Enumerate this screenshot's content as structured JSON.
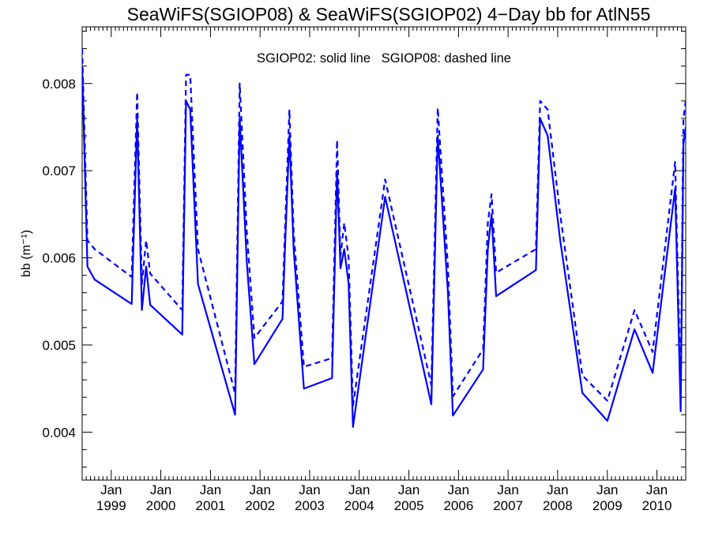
{
  "chart_data": {
    "type": "line",
    "title": "SeaWiFS(SGIOP08) & SeaWiFS(SGIOP02) 4−Day bb for AtlN55",
    "annotation": "SGIOP02: solid line   SGIOP08: dashed line",
    "ylabel": "bb (m⁻¹)",
    "xlabel": "",
    "xlim": [
      "1998-06-01",
      "2010-08-01"
    ],
    "ylim": [
      0.00345,
      0.00865
    ],
    "yticks": [
      0.004,
      0.005,
      0.006,
      0.007,
      0.008
    ],
    "ytick_labels": [
      "0.004",
      "0.005",
      "0.006",
      "0.007",
      "0.008"
    ],
    "xticks": [
      {
        "date": "1999-01-01",
        "month": "Jan",
        "year": "1999"
      },
      {
        "date": "2000-01-01",
        "month": "Jan",
        "year": "2000"
      },
      {
        "date": "2001-01-01",
        "month": "Jan",
        "year": "2001"
      },
      {
        "date": "2002-01-01",
        "month": "Jan",
        "year": "2002"
      },
      {
        "date": "2003-01-01",
        "month": "Jan",
        "year": "2003"
      },
      {
        "date": "2004-01-01",
        "month": "Jan",
        "year": "2004"
      },
      {
        "date": "2005-01-01",
        "month": "Jan",
        "year": "2005"
      },
      {
        "date": "2006-01-01",
        "month": "Jan",
        "year": "2006"
      },
      {
        "date": "2007-01-01",
        "month": "Jan",
        "year": "2007"
      },
      {
        "date": "2008-01-01",
        "month": "Jan",
        "year": "2008"
      },
      {
        "date": "2009-01-01",
        "month": "Jan",
        "year": "2009"
      },
      {
        "date": "2010-01-01",
        "month": "Jan",
        "year": "2010"
      }
    ],
    "grid": false,
    "line_color": "#0000ff",
    "series": [
      {
        "name": "SGIOP02",
        "style": "solid",
        "x": [
          "1998-06-01",
          "1998-07-10",
          "1998-09-01",
          "1999-06-01",
          "1999-07-11",
          "1999-08-15",
          "1999-09-15",
          "1999-10-15",
          "2000-06-07",
          "2000-07-05",
          "2000-08-05",
          "2000-10-01",
          "2001-07-01",
          "2001-08-04",
          "2001-09-25",
          "2001-11-20",
          "2002-06-15",
          "2002-07-01",
          "2002-08-05",
          "2002-09-05",
          "2002-11-20",
          "2003-06-15",
          "2003-07-22",
          "2003-08-16",
          "2003-09-13",
          "2003-10-15",
          "2003-11-16",
          "2004-07-10",
          "2005-06-15",
          "2005-08-01",
          "2005-10-15",
          "2005-11-21",
          "2006-07-01",
          "2006-08-05",
          "2006-09-01",
          "2006-10-05",
          "2007-07-25",
          "2007-08-25",
          "2007-10-20",
          "2008-01-20",
          "2008-07-01",
          "2009-01-01",
          "2009-07-20",
          "2009-11-30",
          "2010-05-15",
          "2010-06-25",
          "2010-07-15",
          "2010-08-01"
        ],
        "values": [
          0.0082,
          0.0059,
          0.00575,
          0.00547,
          0.0076,
          0.0054,
          0.0059,
          0.00546,
          0.00512,
          0.0078,
          0.0077,
          0.0057,
          0.0042,
          0.0076,
          0.00595,
          0.00478,
          0.0053,
          0.006,
          0.0074,
          0.0061,
          0.0045,
          0.00462,
          0.007,
          0.00588,
          0.0061,
          0.0057,
          0.00406,
          0.0067,
          0.00432,
          0.0074,
          0.0056,
          0.00419,
          0.00472,
          0.0061,
          0.0065,
          0.00556,
          0.00586,
          0.0076,
          0.0074,
          0.0062,
          0.00445,
          0.00413,
          0.00518,
          0.00468,
          0.0068,
          0.00424,
          0.0073,
          0.0075
        ]
      },
      {
        "name": "SGIOP08",
        "style": "dashed",
        "x": [
          "1998-06-01",
          "1998-07-10",
          "1998-09-01",
          "1999-06-01",
          "1999-07-11",
          "1999-08-15",
          "1999-09-15",
          "1999-10-15",
          "2000-06-07",
          "2000-07-05",
          "2000-08-05",
          "2000-10-01",
          "2001-07-01",
          "2001-08-04",
          "2001-09-25",
          "2001-11-20",
          "2002-06-15",
          "2002-07-01",
          "2002-08-05",
          "2002-09-05",
          "2002-11-20",
          "2003-06-15",
          "2003-07-22",
          "2003-08-16",
          "2003-09-13",
          "2003-10-15",
          "2003-11-16",
          "2004-07-10",
          "2005-06-15",
          "2005-08-01",
          "2005-10-15",
          "2005-11-21",
          "2006-07-01",
          "2006-08-05",
          "2006-09-01",
          "2006-10-05",
          "2007-07-25",
          "2007-08-25",
          "2007-10-20",
          "2008-01-20",
          "2008-07-01",
          "2009-01-01",
          "2009-07-20",
          "2009-11-30",
          "2010-05-15",
          "2010-06-25",
          "2010-07-15",
          "2010-08-01"
        ],
        "values": [
          0.0084,
          0.0062,
          0.0061,
          0.00578,
          0.0079,
          0.0057,
          0.0062,
          0.00582,
          0.0054,
          0.0081,
          0.0081,
          0.0061,
          0.00444,
          0.008,
          0.0063,
          0.00508,
          0.0055,
          0.0062,
          0.0077,
          0.0063,
          0.00475,
          0.00485,
          0.00735,
          0.00602,
          0.0064,
          0.006,
          0.0043,
          0.0069,
          0.00454,
          0.00772,
          0.0059,
          0.00441,
          0.00495,
          0.0064,
          0.00673,
          0.00583,
          0.0061,
          0.0078,
          0.0077,
          0.0065,
          0.00465,
          0.00436,
          0.0054,
          0.00492,
          0.0071,
          0.00446,
          0.0076,
          0.0078
        ]
      }
    ]
  }
}
